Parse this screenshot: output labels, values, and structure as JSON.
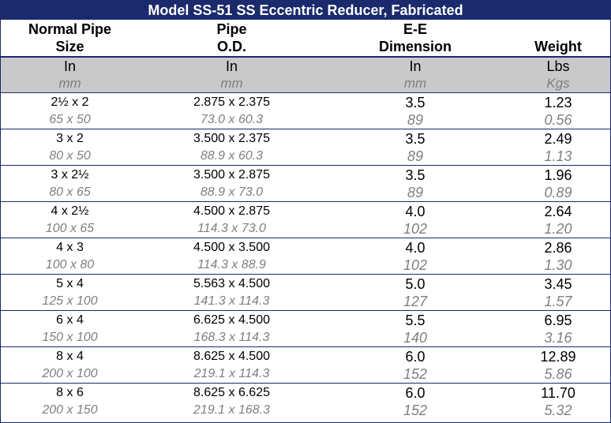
{
  "title": "Model SS-51 SS Eccentric Reducer, Fabricated",
  "headers": [
    {
      "line1": "Normal Pipe",
      "line2": "Size"
    },
    {
      "line1": "Pipe",
      "line2": "O.D."
    },
    {
      "line1": "E-E",
      "line2": "Dimension"
    },
    {
      "line1": "",
      "line2": "Weight"
    }
  ],
  "units": [
    {
      "imperial": "In",
      "metric": "mm"
    },
    {
      "imperial": "In",
      "metric": "mm"
    },
    {
      "imperial": "In",
      "metric": "mm"
    },
    {
      "imperial": "Lbs",
      "metric": "Kgs"
    }
  ],
  "rows": [
    {
      "size_in": "2½ x 2",
      "size_mm": "65 x 50",
      "od_in": "2.875 x 2.375",
      "od_mm": "73.0 x 60.3",
      "ee_in": "3.5",
      "ee_mm": "89",
      "wt_lbs": "1.23",
      "wt_kgs": "0.56"
    },
    {
      "size_in": "3 x 2",
      "size_mm": "80 x 50",
      "od_in": "3.500 x 2.375",
      "od_mm": "88.9 x 60.3",
      "ee_in": "3.5",
      "ee_mm": "89",
      "wt_lbs": "2.49",
      "wt_kgs": "1.13"
    },
    {
      "size_in": "3 x 2½",
      "size_mm": "80 x 65",
      "od_in": "3.500 x 2.875",
      "od_mm": "88.9 x 73.0",
      "ee_in": "3.5",
      "ee_mm": "89",
      "wt_lbs": "1.96",
      "wt_kgs": "0.89"
    },
    {
      "size_in": "4 x 2½",
      "size_mm": "100 x 65",
      "od_in": "4.500 x 2.875",
      "od_mm": "114.3 x 73.0",
      "ee_in": "4.0",
      "ee_mm": "102",
      "wt_lbs": "2.64",
      "wt_kgs": "1.20"
    },
    {
      "size_in": "4 x 3",
      "size_mm": "100 x 80",
      "od_in": "4.500 x 3.500",
      "od_mm": "114.3 x 88.9",
      "ee_in": "4.0",
      "ee_mm": "102",
      "wt_lbs": "2.86",
      "wt_kgs": "1.30"
    },
    {
      "size_in": "5 x 4",
      "size_mm": "125 x 100",
      "od_in": "5.563 x 4.500",
      "od_mm": "141.3 x 114.3",
      "ee_in": "5.0",
      "ee_mm": "127",
      "wt_lbs": "3.45",
      "wt_kgs": "1.57"
    },
    {
      "size_in": "6 x 4",
      "size_mm": "150 x 100",
      "od_in": "6.625 x 4.500",
      "od_mm": "168.3 x 114.3",
      "ee_in": "5.5",
      "ee_mm": "140",
      "wt_lbs": "6.95",
      "wt_kgs": "3.16"
    },
    {
      "size_in": "8 x 4",
      "size_mm": "200 x 100",
      "od_in": "8.625 x 4.500",
      "od_mm": "219.1 x 114.3",
      "ee_in": "6.0",
      "ee_mm": "152",
      "wt_lbs": "12.89",
      "wt_kgs": "5.86"
    },
    {
      "size_in": "8 x 6",
      "size_mm": "200 x 150",
      "od_in": "8.625 x 6.625",
      "od_mm": "219.1 x 168.3",
      "ee_in": "6.0",
      "ee_mm": "152",
      "wt_lbs": "11.70",
      "wt_kgs": "5.32"
    }
  ],
  "colors": {
    "header_bg": "#1a2a6c",
    "units_bg": "#c9c9c9",
    "metric_text": "#7f7f7f"
  }
}
